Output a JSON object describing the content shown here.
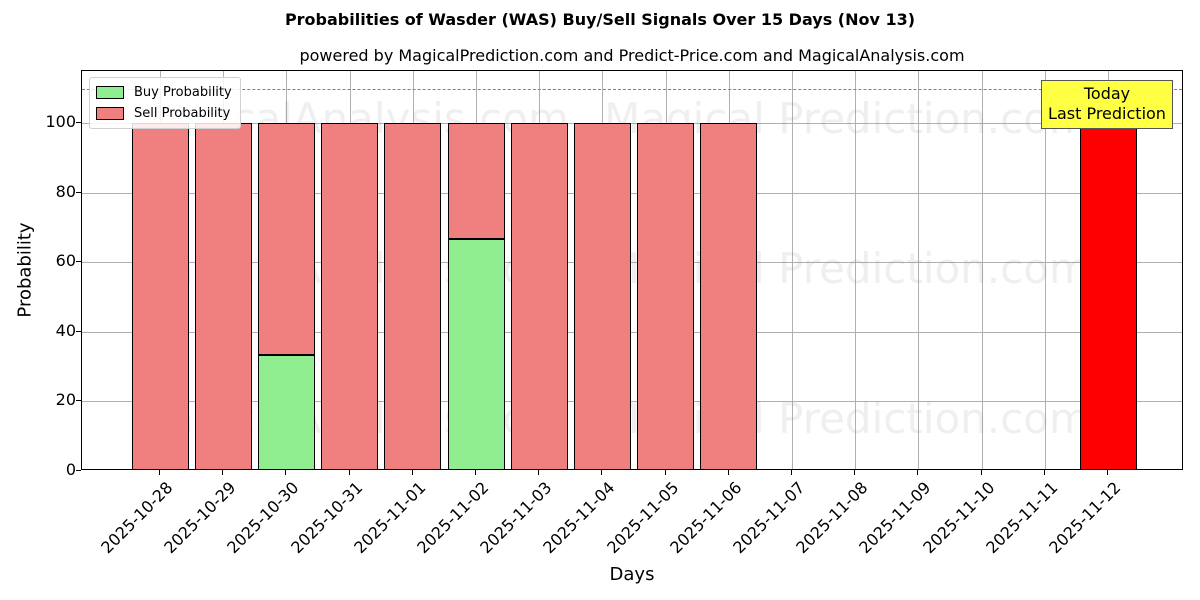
{
  "chart_data": {
    "type": "bar",
    "stacked": true,
    "title": "Probabilities of Wasder (WAS) Buy/Sell Signals Over 15 Days (Nov 13)",
    "subtitle": "powered by MagicalPrediction.com and Predict-Price.com and MagicalAnalysis.com",
    "xlabel": "Days",
    "ylabel": "Probability",
    "ylim": [
      0,
      115
    ],
    "yticks": [
      0,
      20,
      40,
      60,
      80,
      100
    ],
    "grid": true,
    "legend_position": "upper left",
    "categories": [
      "2025-10-28",
      "2025-10-29",
      "2025-10-30",
      "2025-10-31",
      "2025-11-01",
      "2025-11-02",
      "2025-11-03",
      "2025-11-04",
      "2025-11-05",
      "2025-11-06",
      "2025-11-07",
      "2025-11-08",
      "2025-11-09",
      "2025-11-10",
      "2025-11-11",
      "2025-11-12"
    ],
    "series": [
      {
        "name": "Buy Probability",
        "color": "#90ee90",
        "values": [
          0,
          0,
          33.33,
          0,
          0,
          66.67,
          0,
          0,
          0,
          0,
          null,
          null,
          null,
          null,
          null,
          0
        ]
      },
      {
        "name": "Sell Probability",
        "color": "#f08080",
        "values": [
          100,
          100,
          66.67,
          100,
          100,
          33.33,
          100,
          100,
          100,
          100,
          null,
          null,
          null,
          null,
          null,
          100
        ]
      }
    ],
    "highlight": {
      "category": "2025-11-12",
      "color": "#ff0000",
      "value": 100
    },
    "reference_line": {
      "y": 110,
      "style": "dashed",
      "color": "#808080"
    },
    "annotation": {
      "text": "Today\nLast Prediction",
      "line1": "Today",
      "line2": "Last Prediction",
      "background": "#ffff44"
    },
    "watermarks": [
      "MagicalAnalysis.com",
      "MagicalPrediction.com"
    ]
  },
  "legend": {
    "buy": "Buy Probability",
    "sell": "Sell Probability"
  },
  "annotation": {
    "line1": "Today",
    "line2": "Last Prediction"
  },
  "watermark": {
    "left": "MagicalAnalysis.com",
    "right": "Magical Prediction.com"
  }
}
